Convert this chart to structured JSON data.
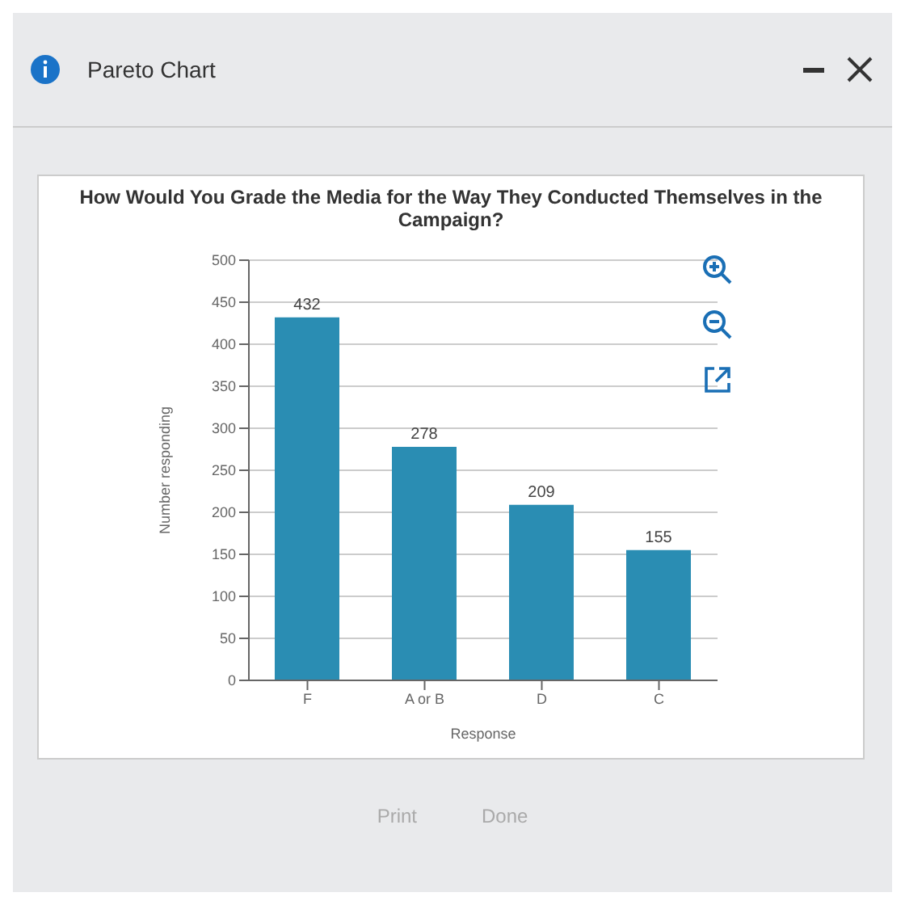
{
  "chart_data": {
    "type": "bar",
    "title": "How Would You Grade the Media for the Way They Conducted Themselves in the Campaign?",
    "xlabel": "Response",
    "ylabel": "Number responding",
    "categories": [
      "F",
      "A or B",
      "D",
      "C"
    ],
    "values": [
      432,
      278,
      209,
      155
    ],
    "color": "#2a8db3",
    "ylim": [
      0,
      500
    ],
    "yticks": [
      0,
      50,
      100,
      150,
      200,
      250,
      300,
      350,
      400,
      450,
      500
    ],
    "grid": "y",
    "data_labels": true,
    "legend": false,
    "annotations": [
      "Pareto Chart",
      "Print",
      "Done"
    ]
  }
}
